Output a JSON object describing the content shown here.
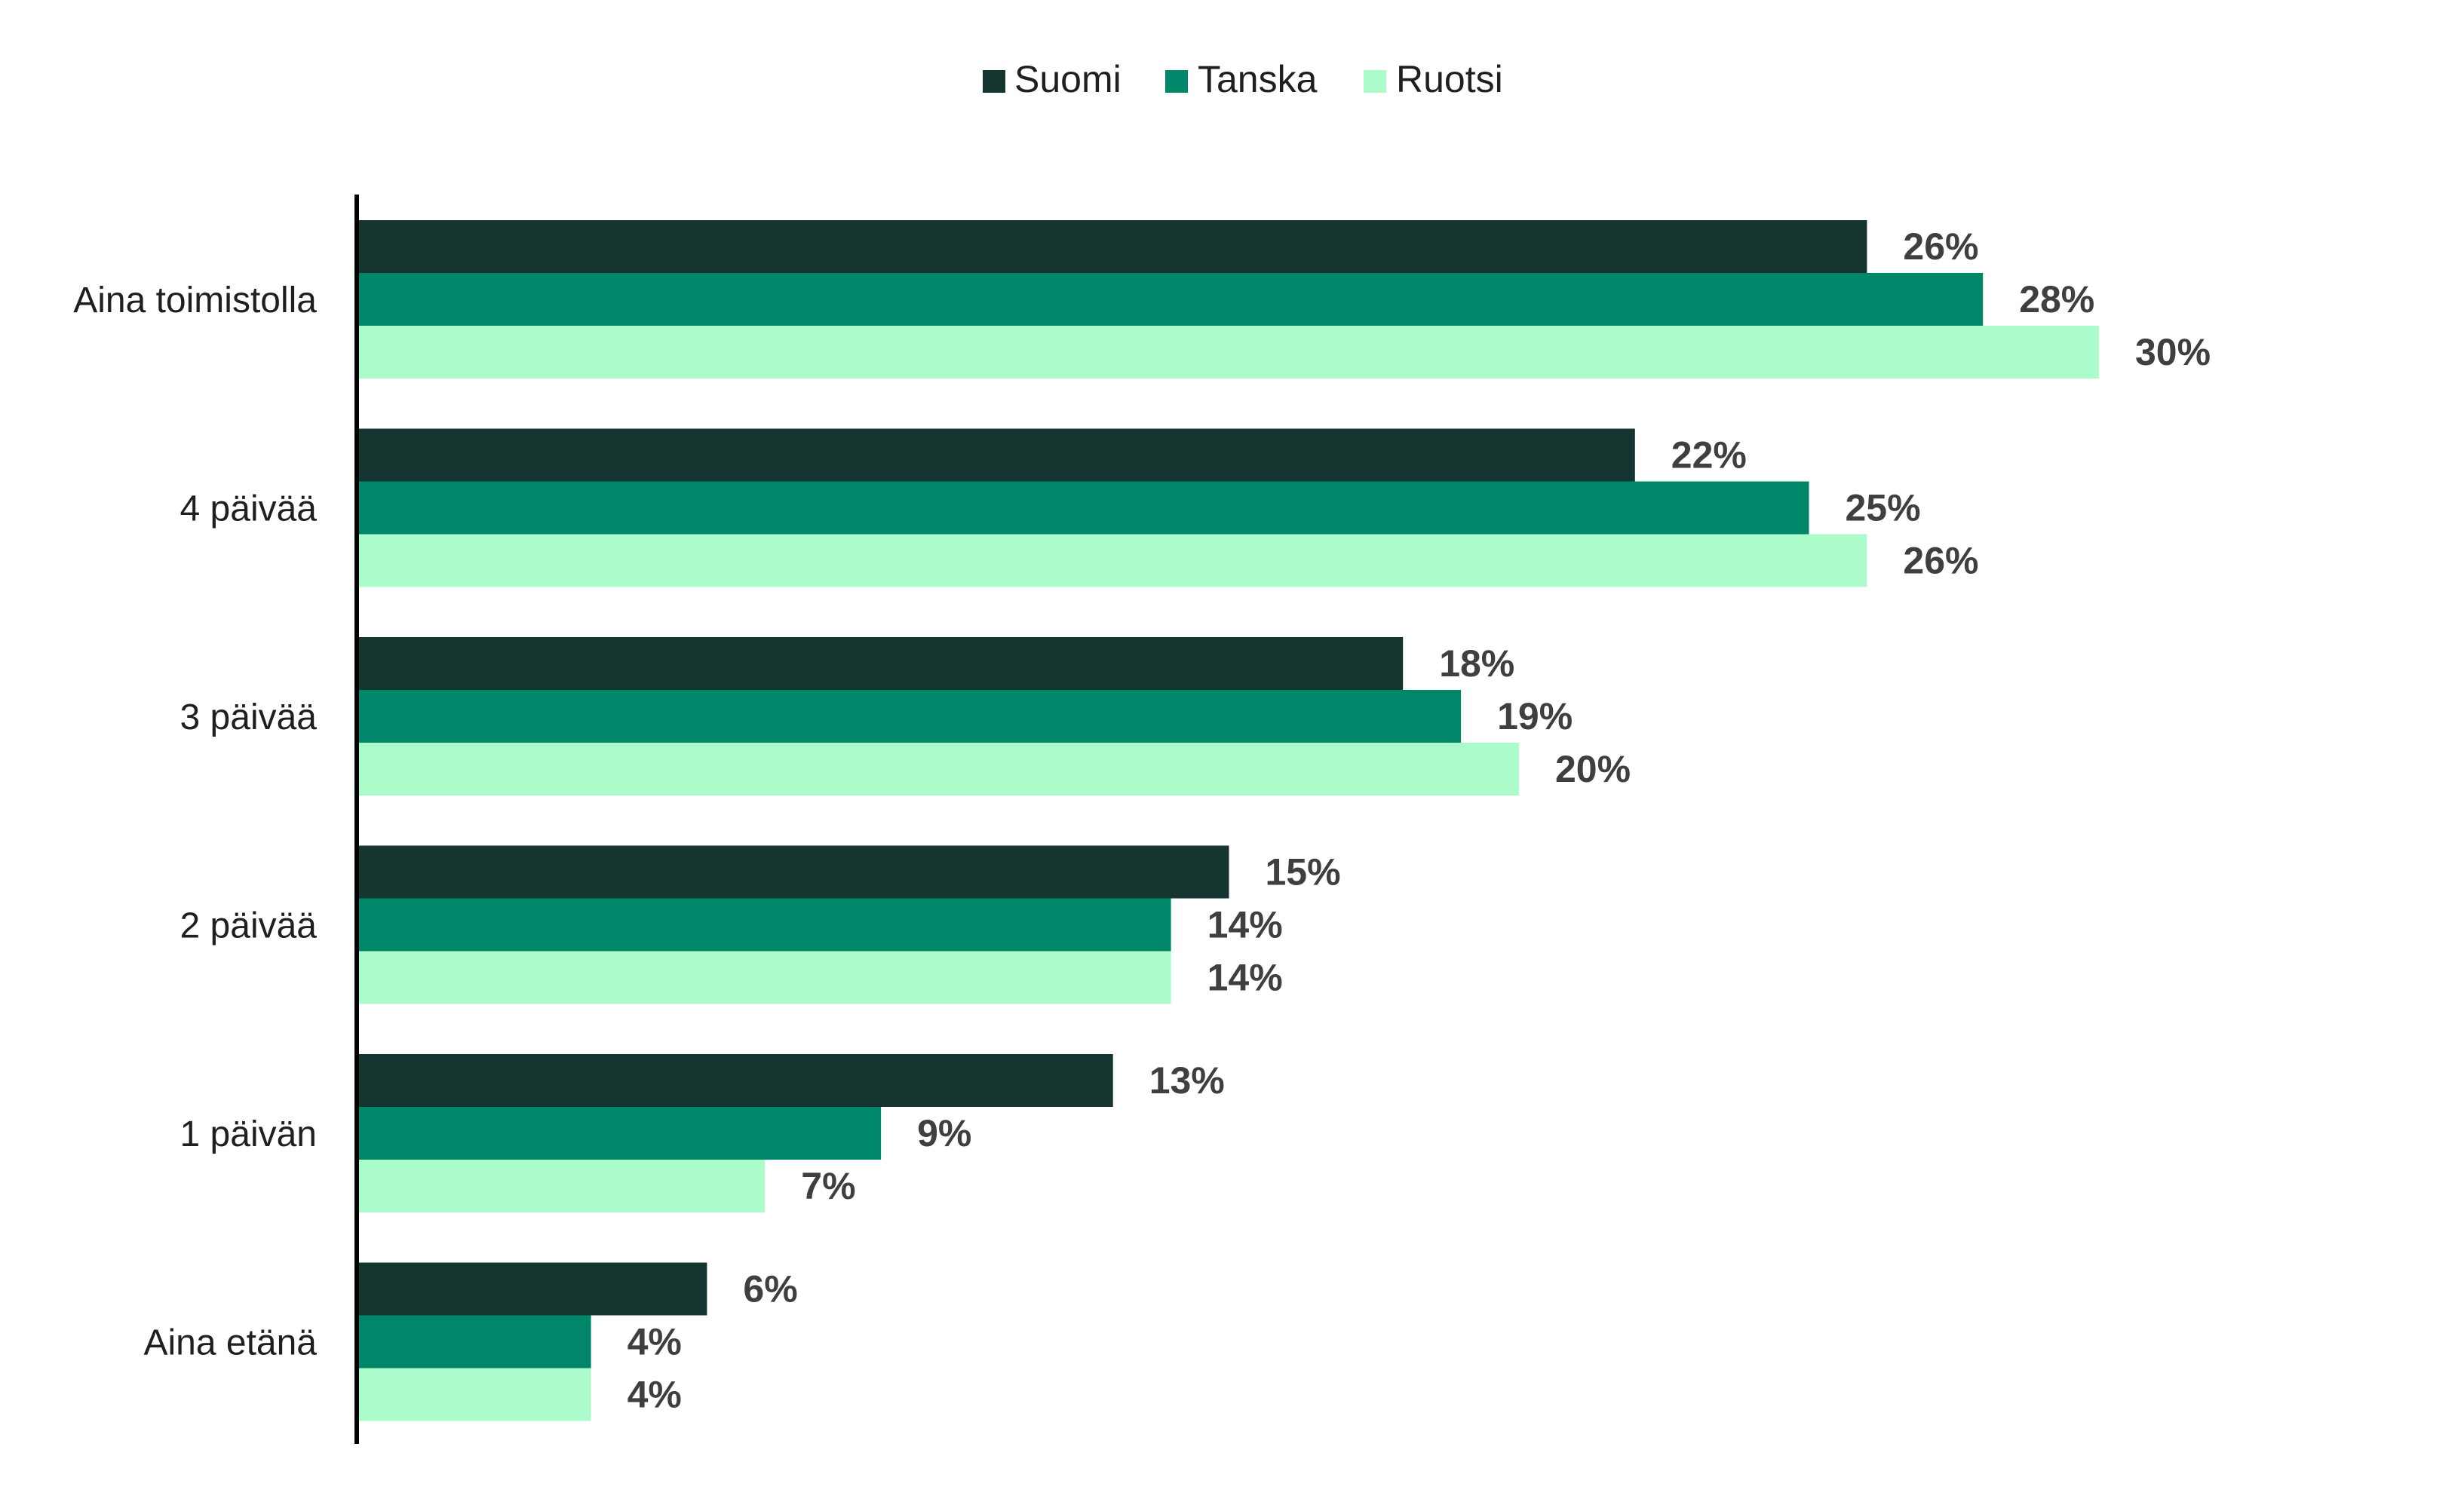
{
  "chart_data": {
    "type": "bar",
    "orientation": "horizontal",
    "categories": [
      "Aina toimistolla",
      "4 päivää",
      "3 päivää",
      "2 päivää",
      "1 päivän",
      "Aina etänä"
    ],
    "series": [
      {
        "name": "Suomi",
        "color": "#143530",
        "values": [
          26,
          22,
          18,
          15,
          13,
          6
        ],
        "labels": [
          "26%",
          "22%",
          "18%",
          "15%",
          "13%",
          "6%"
        ]
      },
      {
        "name": "Tanska",
        "color": "#00876a",
        "values": [
          28,
          25,
          19,
          14,
          9,
          4
        ],
        "labels": [
          "28%",
          "25%",
          "19%",
          "14%",
          "9%",
          "4%"
        ]
      },
      {
        "name": "Ruotsi",
        "color": "#abfbcb",
        "values": [
          30,
          26,
          20,
          14,
          7,
          4
        ],
        "labels": [
          "30%",
          "26%",
          "20%",
          "14%",
          "7%",
          "4%"
        ]
      }
    ],
    "legend_position": "top-center",
    "x_axis_visible": false,
    "grid": false,
    "unit": "%"
  }
}
